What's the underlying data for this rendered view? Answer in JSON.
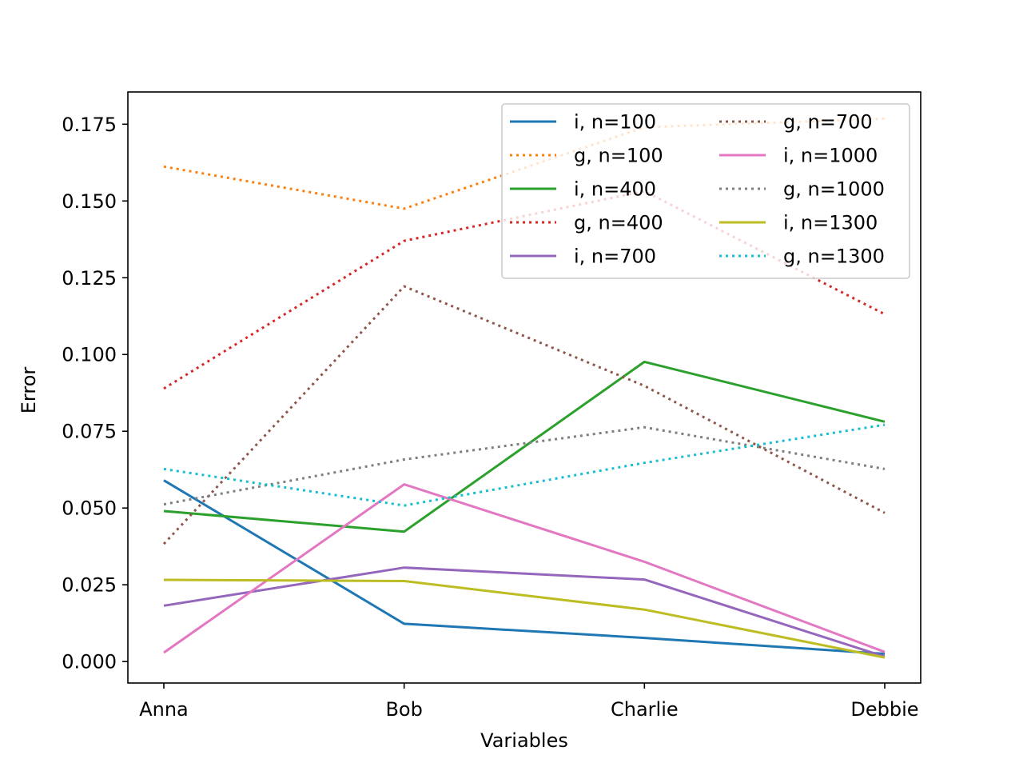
{
  "chart_data": {
    "type": "line",
    "title": "",
    "xlabel": "Variables",
    "ylabel": "Error",
    "categories": [
      "Anna",
      "Bob",
      "Charlie",
      "Debbie"
    ],
    "ylim": [
      -0.007,
      0.1855
    ],
    "yticks": [
      0.0,
      0.025,
      0.05,
      0.075,
      0.1,
      0.125,
      0.15,
      0.175
    ],
    "ytick_labels": [
      "0.000",
      "0.025",
      "0.050",
      "0.075",
      "0.100",
      "0.125",
      "0.150",
      "0.175"
    ],
    "grid": false,
    "legend": {
      "position": "top-right",
      "columns": 2
    },
    "series": [
      {
        "name": "i, n=100",
        "style": "solid",
        "color": "#1f77b4",
        "values": [
          0.059,
          0.0123,
          0.0077,
          0.0025
        ]
      },
      {
        "name": "g, n=100",
        "style": "dotted",
        "color": "#ff7f0e",
        "values": [
          0.1612,
          0.1475,
          0.174,
          0.1768
        ]
      },
      {
        "name": "i, n=400",
        "style": "solid",
        "color": "#2ca02c",
        "values": [
          0.049,
          0.0423,
          0.0976,
          0.0781
        ]
      },
      {
        "name": "g, n=400",
        "style": "dotted",
        "color": "#d62728",
        "values": [
          0.0889,
          0.137,
          0.1532,
          0.1131
        ]
      },
      {
        "name": "i, n=700",
        "style": "solid",
        "color": "#9467bd",
        "values": [
          0.0182,
          0.0306,
          0.0267,
          0.0016
        ]
      },
      {
        "name": "g, n=700",
        "style": "dotted",
        "color": "#8c564b",
        "values": [
          0.0383,
          0.1222,
          0.0898,
          0.0484
        ]
      },
      {
        "name": "i, n=1000",
        "style": "solid",
        "color": "#e377c2",
        "values": [
          0.0029,
          0.0577,
          0.0325,
          0.0031
        ]
      },
      {
        "name": "g, n=1000",
        "style": "dotted",
        "color": "#7f7f7f",
        "values": [
          0.0512,
          0.0658,
          0.0763,
          0.0627
        ]
      },
      {
        "name": "i, n=1300",
        "style": "solid",
        "color": "#bcbd22",
        "values": [
          0.0266,
          0.0262,
          0.0169,
          0.0013
        ]
      },
      {
        "name": "g, n=1300",
        "style": "dotted",
        "color": "#17becf",
        "values": [
          0.0627,
          0.0508,
          0.0647,
          0.0771
        ]
      }
    ]
  }
}
